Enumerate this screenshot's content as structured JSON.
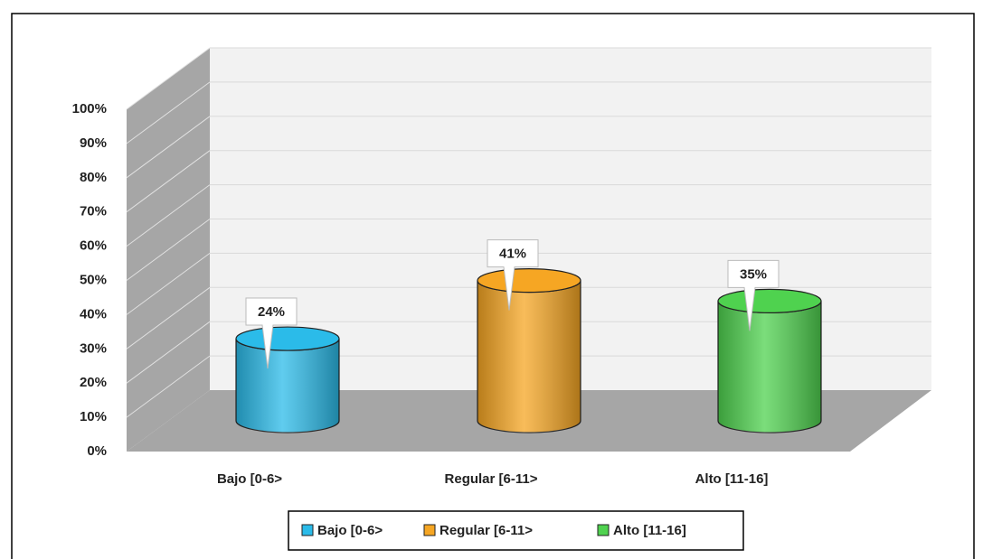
{
  "chart_data": {
    "type": "bar3d",
    "categories": [
      "Bajo [0-6>",
      "Regular [6-11>",
      "Alto [11-16]"
    ],
    "values": [
      24,
      41,
      35
    ],
    "value_labels": [
      "24%",
      "41%",
      "35%"
    ],
    "colors": [
      "#2bbbe9",
      "#f6a623",
      "#4fd24f"
    ],
    "ylim": [
      0,
      100
    ],
    "yticks": [
      {
        "value": 0,
        "label": "0%"
      },
      {
        "value": 10,
        "label": "10%"
      },
      {
        "value": 20,
        "label": "20%"
      },
      {
        "value": 30,
        "label": "30%"
      },
      {
        "value": 40,
        "label": "40%"
      },
      {
        "value": 50,
        "label": "50%"
      },
      {
        "value": 60,
        "label": "60%"
      },
      {
        "value": 70,
        "label": "70%"
      },
      {
        "value": 80,
        "label": "80%"
      },
      {
        "value": 90,
        "label": "90%"
      },
      {
        "value": 100,
        "label": "100%"
      }
    ],
    "grid": true,
    "legend": "bottom"
  }
}
